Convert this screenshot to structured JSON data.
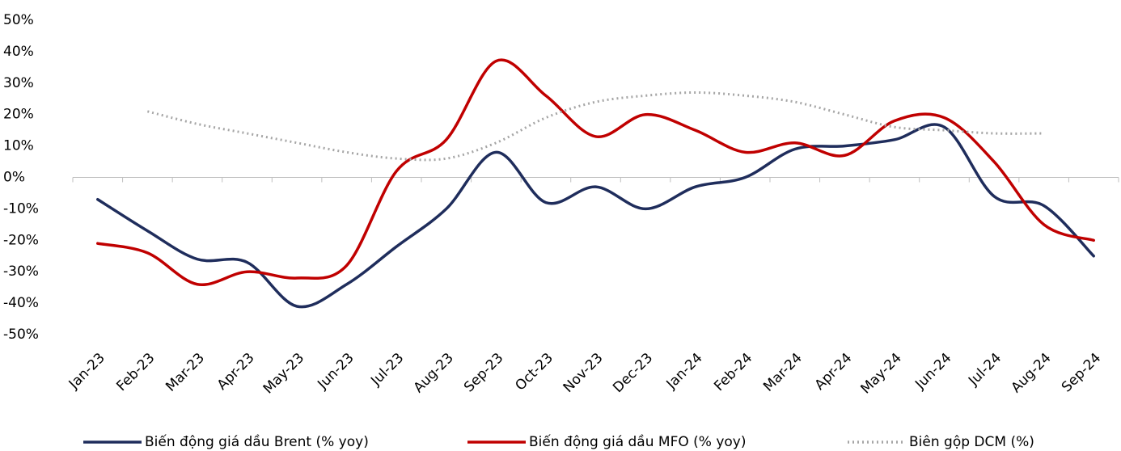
{
  "chart_data": {
    "type": "line",
    "categories": [
      "Jan-23",
      "Feb-23",
      "Mar-23",
      "Apr-23",
      "May-23",
      "Jun-23",
      "Jul-23",
      "Aug-23",
      "Sep-23",
      "Oct-23",
      "Nov-23",
      "Dec-23",
      "Jan-24",
      "Feb-24",
      "Mar-24",
      "Apr-24",
      "May-24",
      "Jun-24",
      "Jul-24",
      "Aug-24",
      "Sep-24"
    ],
    "series": [
      {
        "name": "Biến động giá dầu Brent (% yoy)",
        "color": "#1f2d5c",
        "style": "solid",
        "values": [
          -7,
          -17,
          -26,
          -27,
          -41,
          -34,
          -22,
          -10,
          8,
          -8,
          -3,
          -10,
          -3,
          0,
          9,
          10,
          12,
          16,
          -6,
          -9,
          -25
        ]
      },
      {
        "name": "Biến động giá dầu MFO (% yoy)",
        "color": "#c00000",
        "style": "solid",
        "values": [
          -21,
          -24,
          -34,
          -30,
          -32,
          -28,
          2,
          12,
          37,
          26,
          13,
          20,
          15,
          8,
          11,
          7,
          18,
          19,
          5,
          -15,
          -20
        ]
      },
      {
        "name": "Biên gộp DCM (%)",
        "color": "#a6a6a6",
        "style": "dotted",
        "values": [
          null,
          21,
          17,
          14,
          11,
          8,
          6,
          6,
          11,
          19,
          24,
          26,
          27,
          26,
          24,
          20,
          16,
          15,
          14,
          14,
          null
        ]
      }
    ],
    "ylim": [
      -50,
      50
    ],
    "yticks": [
      {
        "value": -50,
        "label": "-50%"
      },
      {
        "value": -40,
        "label": "-40%"
      },
      {
        "value": -30,
        "label": "-30%"
      },
      {
        "value": -20,
        "label": "-20%"
      },
      {
        "value": -10,
        "label": "-10%"
      },
      {
        "value": 0,
        "label": "0%"
      },
      {
        "value": 10,
        "label": "10%"
      },
      {
        "value": 20,
        "label": "20%"
      },
      {
        "value": 30,
        "label": "30%"
      },
      {
        "value": 40,
        "label": "40%"
      },
      {
        "value": 50,
        "label": "50%"
      }
    ],
    "grid": false,
    "legend": "bottom"
  }
}
